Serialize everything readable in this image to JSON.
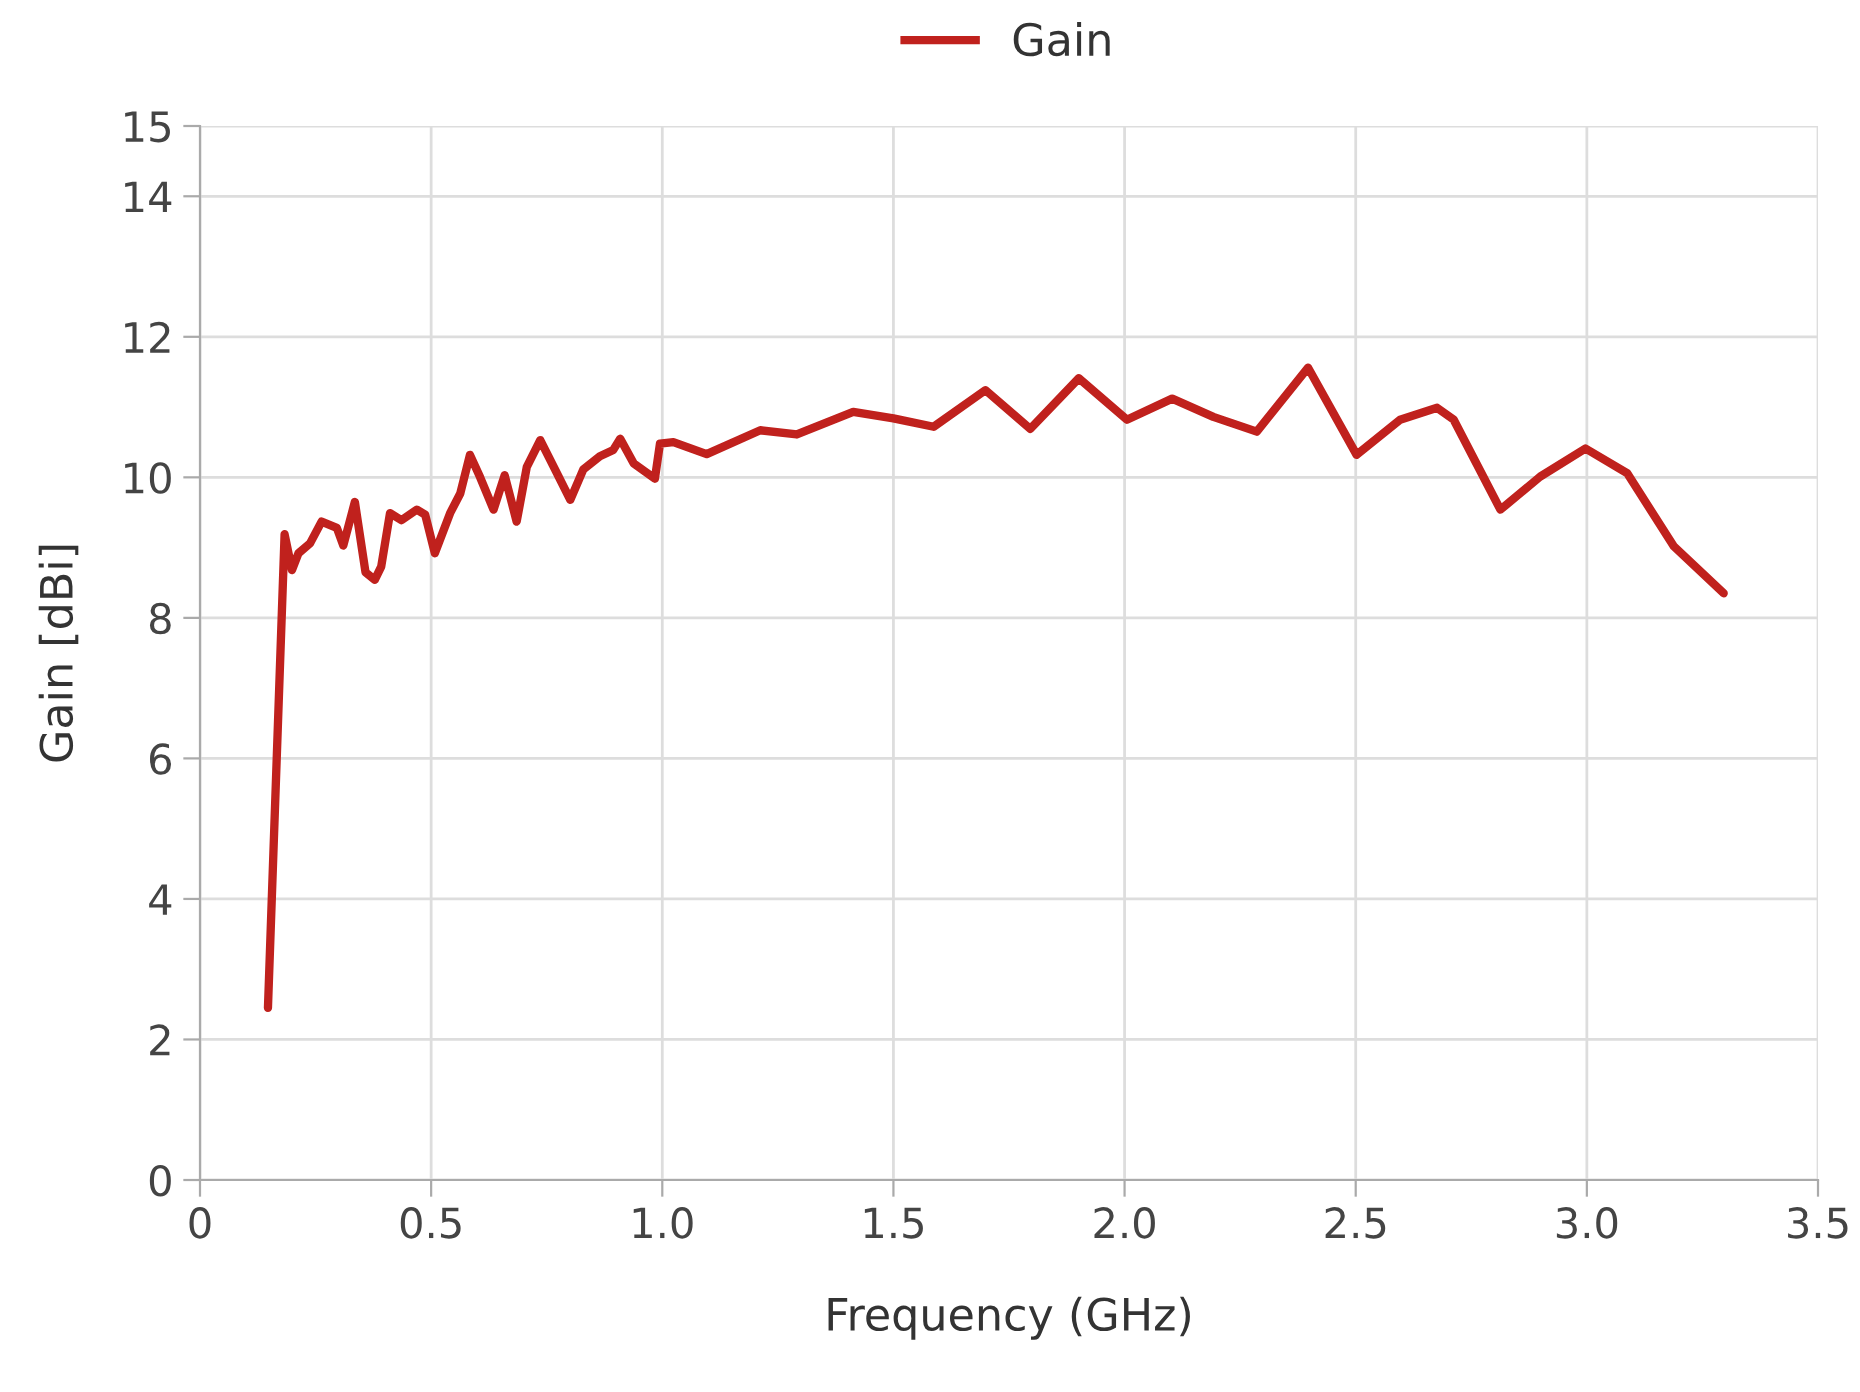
{
  "chart_data": {
    "type": "line",
    "xlabel": "Frequency (GHz)",
    "ylabel": "Gain [dBi]",
    "xlim": [
      0,
      3.5
    ],
    "ylim": [
      0,
      15
    ],
    "xticks": [
      0,
      0.5,
      {
        "value": 1,
        "label": "1.0"
      },
      1.5,
      {
        "value": 2,
        "label": "2.0"
      },
      2.5,
      {
        "value": 3,
        "label": "3.0"
      },
      3.5
    ],
    "yticks": [
      0,
      2,
      4,
      6,
      8,
      10,
      12,
      14,
      15
    ],
    "grid": true,
    "legend": "top",
    "marker": "none",
    "line_style": "solid",
    "series": [
      {
        "name": "Gain",
        "color": "#c0211d",
        "x": [
          0.147,
          0.183,
          0.199,
          0.213,
          0.238,
          0.263,
          0.296,
          0.31,
          0.335,
          0.358,
          0.378,
          0.392,
          0.411,
          0.436,
          0.469,
          0.487,
          0.508,
          0.541,
          0.563,
          0.584,
          0.606,
          0.635,
          0.659,
          0.685,
          0.707,
          0.736,
          0.772,
          0.801,
          0.829,
          0.865,
          0.894,
          0.909,
          0.938,
          0.984,
          0.995,
          1.024,
          1.096,
          1.212,
          1.291,
          1.413,
          1.5,
          1.587,
          1.699,
          1.796,
          1.901,
          2.005,
          2.103,
          2.192,
          2.286,
          2.397,
          2.502,
          2.596,
          2.676,
          2.712,
          2.813,
          2.899,
          2.997,
          3.087,
          3.188,
          3.296
        ],
        "values": [
          2.45,
          9.19,
          8.68,
          8.92,
          9.06,
          9.37,
          9.28,
          9.03,
          9.65,
          8.65,
          8.54,
          8.73,
          9.49,
          9.39,
          9.54,
          9.47,
          8.92,
          9.49,
          9.77,
          10.32,
          10.0,
          9.54,
          10.03,
          9.37,
          10.15,
          10.53,
          10.06,
          9.68,
          10.11,
          10.3,
          10.39,
          10.55,
          10.2,
          9.98,
          10.48,
          10.5,
          10.33,
          10.67,
          10.61,
          10.93,
          10.84,
          10.72,
          11.24,
          10.69,
          11.41,
          10.82,
          11.12,
          10.86,
          10.65,
          11.56,
          10.32,
          10.82,
          10.99,
          10.82,
          9.54,
          10.01,
          10.41,
          10.06,
          9.02,
          8.35
        ]
      }
    ]
  }
}
